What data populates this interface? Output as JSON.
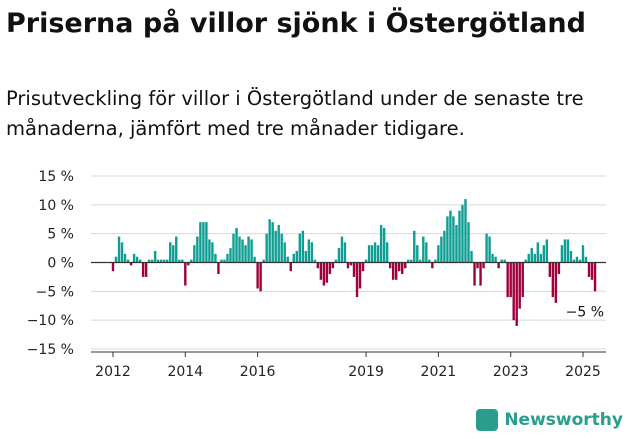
{
  "title": "Priserna på villor sjönk i Östergötland",
  "subtitle": "Prisutveckling för villor i Östergötland under de senaste tre månaderna, jämfört med tre månader tidigare.",
  "brand": {
    "label": "Newsworthy",
    "icon": "chart-badge-icon",
    "color": "#2a9d8f"
  },
  "colors": {
    "positive": "#0f9e94",
    "negative": "#a0003c",
    "grid": "#d8d8d8",
    "axis": "#333333"
  },
  "chart_data": {
    "type": "bar",
    "unit": "%",
    "xlabel": "",
    "ylabel": "",
    "ylim": [
      -15,
      15
    ],
    "y_ticks": [
      15,
      10,
      5,
      0,
      -5,
      -10,
      -15
    ],
    "y_tick_labels": [
      "15 %",
      "10 %",
      "5 %",
      "0 %",
      "−5 %",
      "−10 %",
      "−15 %"
    ],
    "x_tick_labels": [
      {
        "label": "2012",
        "index": 0
      },
      {
        "label": "2014",
        "index": 24
      },
      {
        "label": "2016",
        "index": 48
      },
      {
        "label": "2019",
        "index": 84
      },
      {
        "label": "2021",
        "index": 108
      },
      {
        "label": "2023",
        "index": 132
      },
      {
        "label": "2025",
        "index": 156
      }
    ],
    "grid": true,
    "values": [
      -1.5,
      1.0,
      4.5,
      3.5,
      1.5,
      0.5,
      -0.5,
      1.5,
      1.0,
      0.5,
      -2.5,
      -2.5,
      0.5,
      0.5,
      2.0,
      0.5,
      0.5,
      0.5,
      0.5,
      3.5,
      3.0,
      4.5,
      0.5,
      0.5,
      -4.0,
      -0.5,
      0.5,
      3.0,
      4.5,
      7.0,
      7.0,
      7.0,
      4.0,
      3.5,
      1.5,
      -2.0,
      0.5,
      0.5,
      1.5,
      2.5,
      5.0,
      6.0,
      4.5,
      4.0,
      3.0,
      4.5,
      4.0,
      1.0,
      -4.5,
      -5.0,
      0.5,
      5.0,
      7.5,
      7.0,
      5.5,
      6.5,
      5.0,
      3.5,
      1.0,
      -1.5,
      1.5,
      2.0,
      5.0,
      5.5,
      2.0,
      4.0,
      3.5,
      0.5,
      -1.0,
      -3.0,
      -4.0,
      -3.5,
      -2.0,
      -1.0,
      0.5,
      2.5,
      4.5,
      3.5,
      -1.0,
      -0.5,
      -2.5,
      -6.0,
      -4.5,
      -1.5,
      0.5,
      3.0,
      3.0,
      3.5,
      3.0,
      6.5,
      6.0,
      3.5,
      -1.0,
      -3.0,
      -3.0,
      -1.5,
      -2.0,
      -1.0,
      0.5,
      0.5,
      5.5,
      3.0,
      0.5,
      4.5,
      3.5,
      0.5,
      -1.0,
      0.5,
      3.0,
      4.5,
      5.5,
      8.0,
      9.0,
      8.0,
      6.5,
      9.0,
      10.0,
      11.0,
      7.0,
      2.0,
      -4.0,
      -1.0,
      -4.0,
      -1.0,
      5.0,
      4.5,
      1.5,
      1.0,
      -1.0,
      0.5,
      0.5,
      -6.0,
      -6.0,
      -10.0,
      -11.0,
      -8.0,
      -6.0,
      0.5,
      1.5,
      2.5,
      1.5,
      3.5,
      1.5,
      3.0,
      4.0,
      -2.5,
      -6.0,
      -7.0,
      -2.0,
      3.0,
      4.0,
      4.0,
      2.0,
      0.5,
      1.0,
      0.5,
      3.0,
      1.0,
      -2.5,
      -3.0,
      -5.0
    ],
    "annotation": {
      "text": "−5 %",
      "value": -5,
      "index": 160
    }
  }
}
